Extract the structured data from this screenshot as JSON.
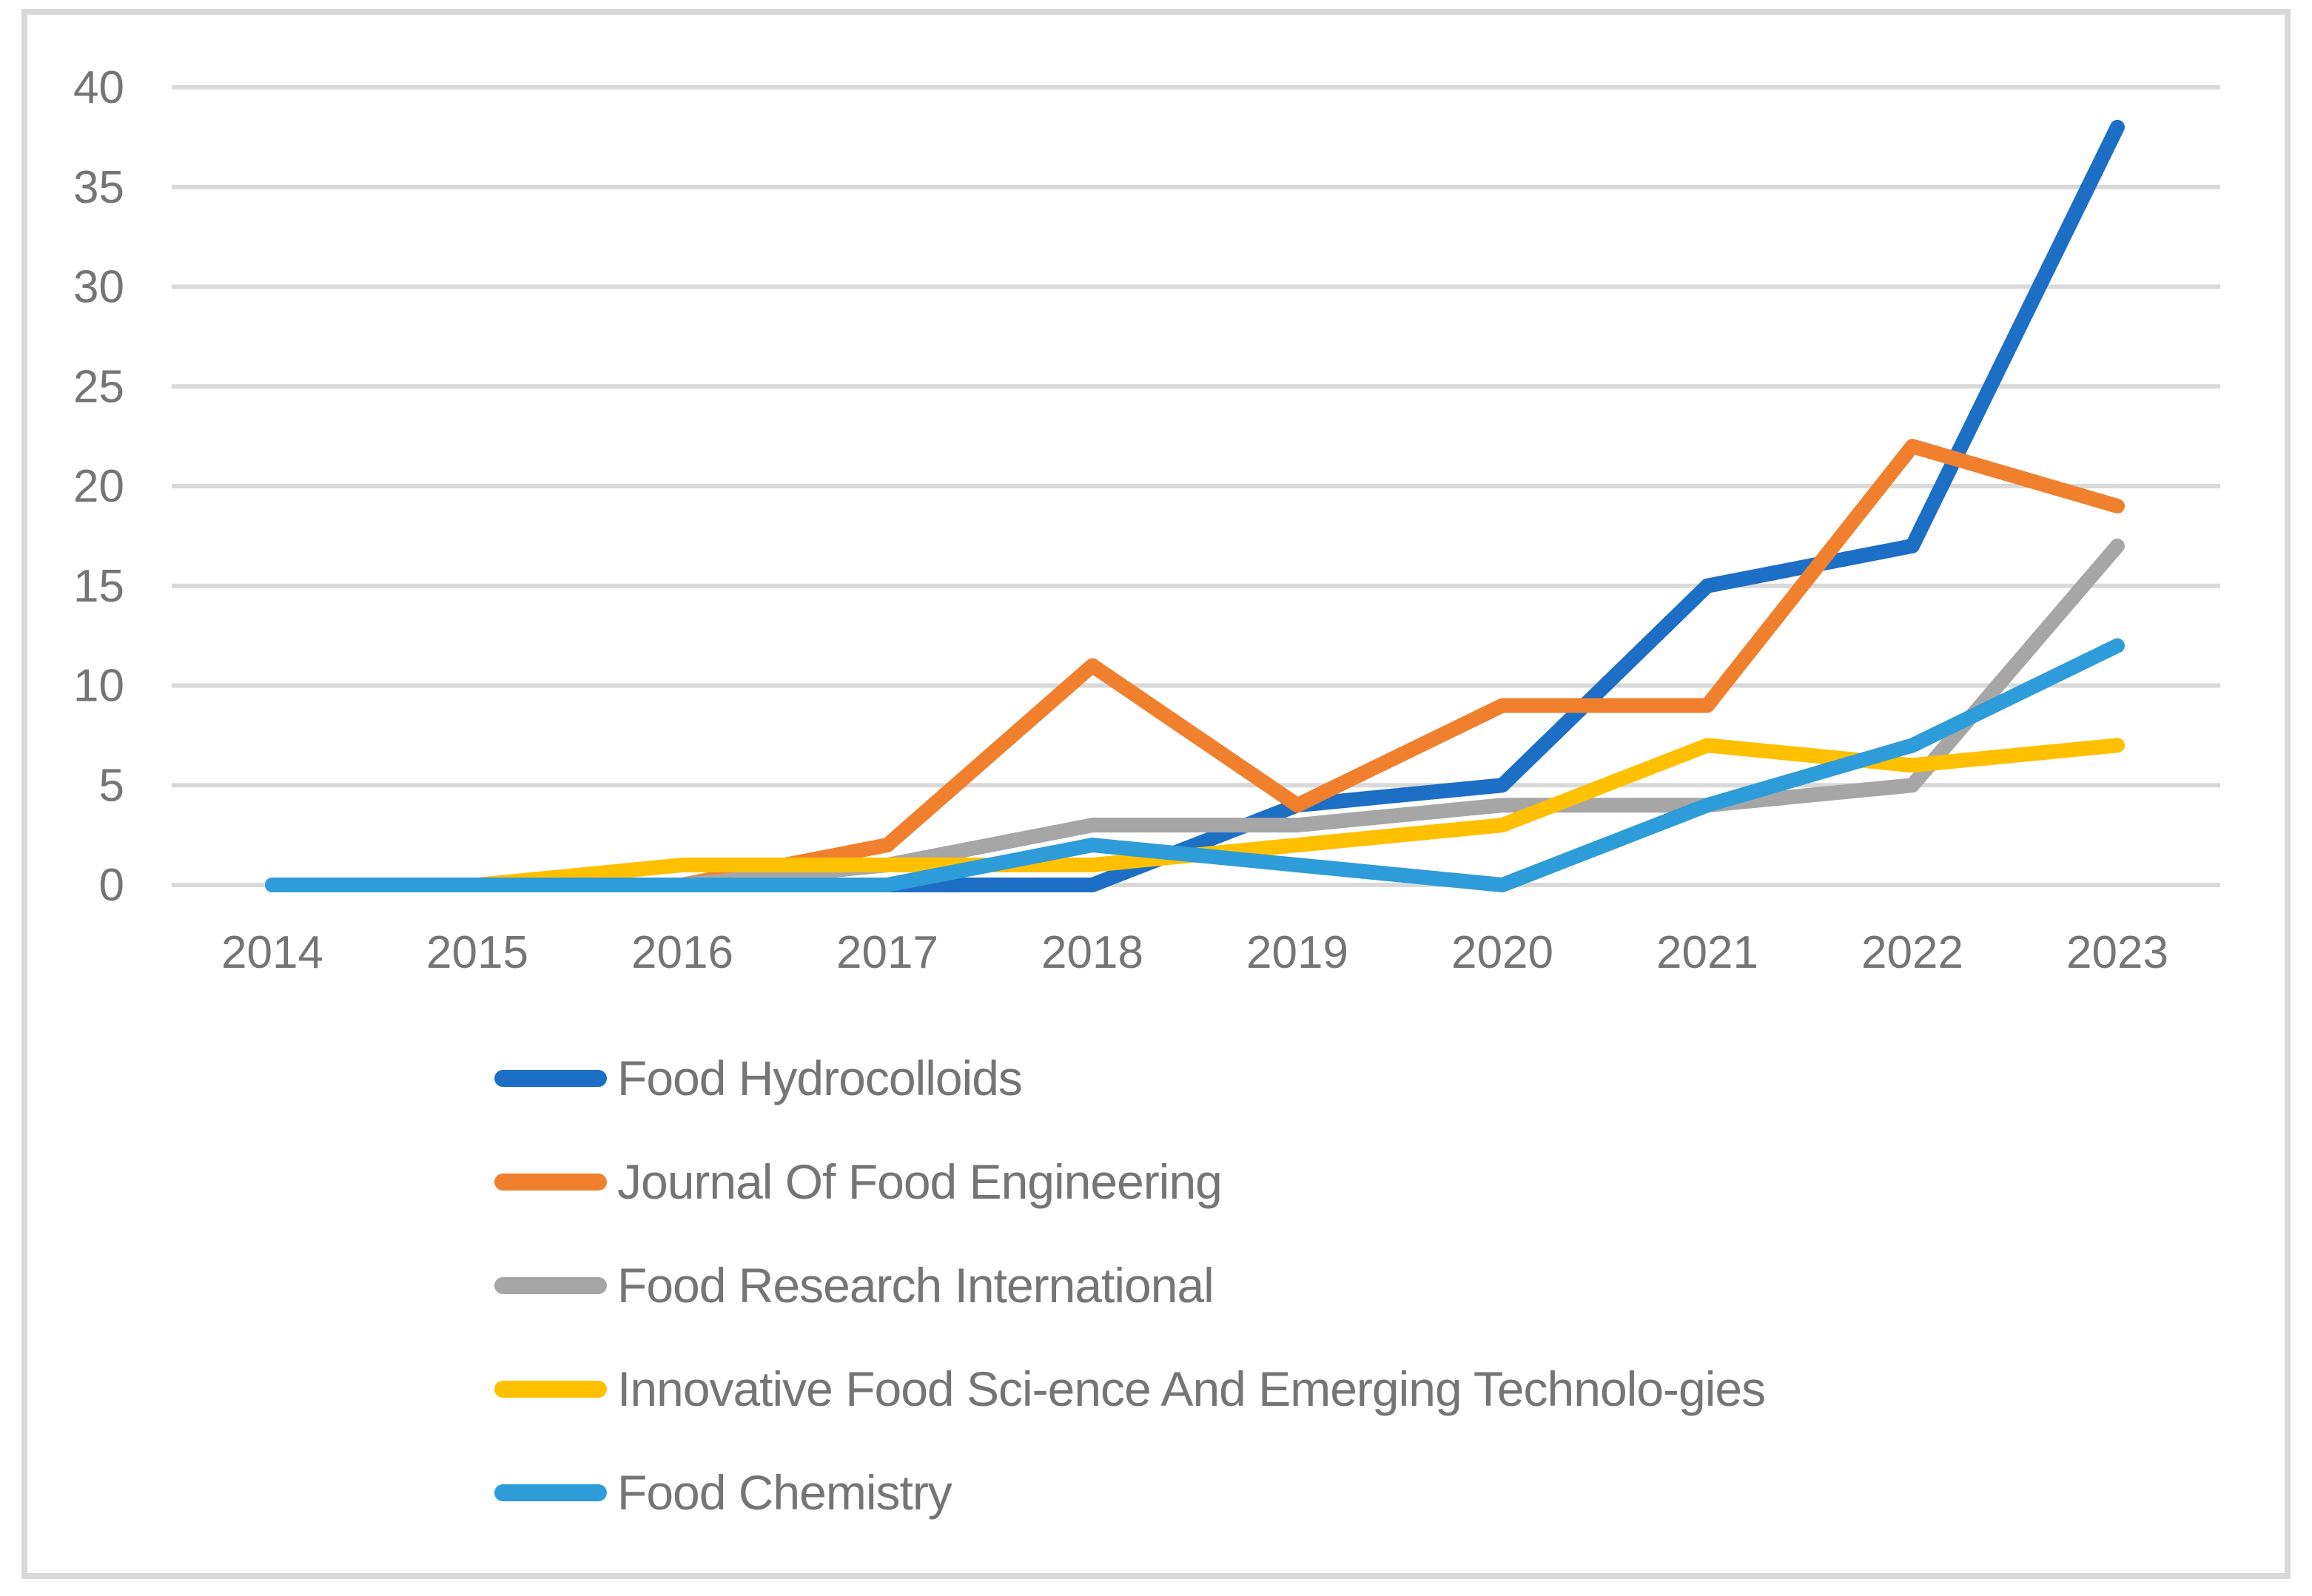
{
  "figure": {
    "background_color": "#FFFFFF",
    "border_color": "#D9D9D9",
    "gridline_color": "#D9D9D9",
    "axis_text_color": "#757575",
    "legend_text_color": "#757575"
  },
  "chart_data": {
    "type": "line",
    "title": "",
    "xlabel": "",
    "ylabel": "",
    "categories": [
      "2014",
      "2015",
      "2016",
      "2017",
      "2018",
      "2019",
      "2020",
      "2021",
      "2022",
      "2023"
    ],
    "series": [
      {
        "name": "Food Hydrocolloids",
        "color": "#1C6FC4",
        "values": [
          0,
          0,
          0,
          0,
          0,
          4,
          5,
          15,
          17,
          38
        ]
      },
      {
        "name": "Journal Of Food Engineering",
        "color": "#F0802E",
        "values": [
          0,
          0,
          0,
          2,
          11,
          4,
          9,
          9,
          22,
          19
        ]
      },
      {
        "name": "Food Research International",
        "color": "#A6A6A6",
        "values": [
          0,
          0,
          0,
          1,
          3,
          3,
          4,
          4,
          5,
          17
        ]
      },
      {
        "name": "Innovative Food Sci-ence And Emerging Technolo-gies",
        "color": "#FFC000",
        "values": [
          0,
          0,
          1,
          1,
          1,
          2,
          3,
          7,
          6,
          7
        ]
      },
      {
        "name": "Food Chemistry",
        "color": "#2E9CD8",
        "values": [
          0,
          0,
          0,
          0,
          2,
          1,
          0,
          4,
          7,
          12
        ]
      }
    ],
    "ylim": [
      0,
      40
    ],
    "y_ticks": [
      0,
      5,
      10,
      15,
      20,
      25,
      30,
      35,
      40
    ],
    "grid": "horizontal-only",
    "legend_position": "bottom-left",
    "line_style": "thick-rounded"
  }
}
